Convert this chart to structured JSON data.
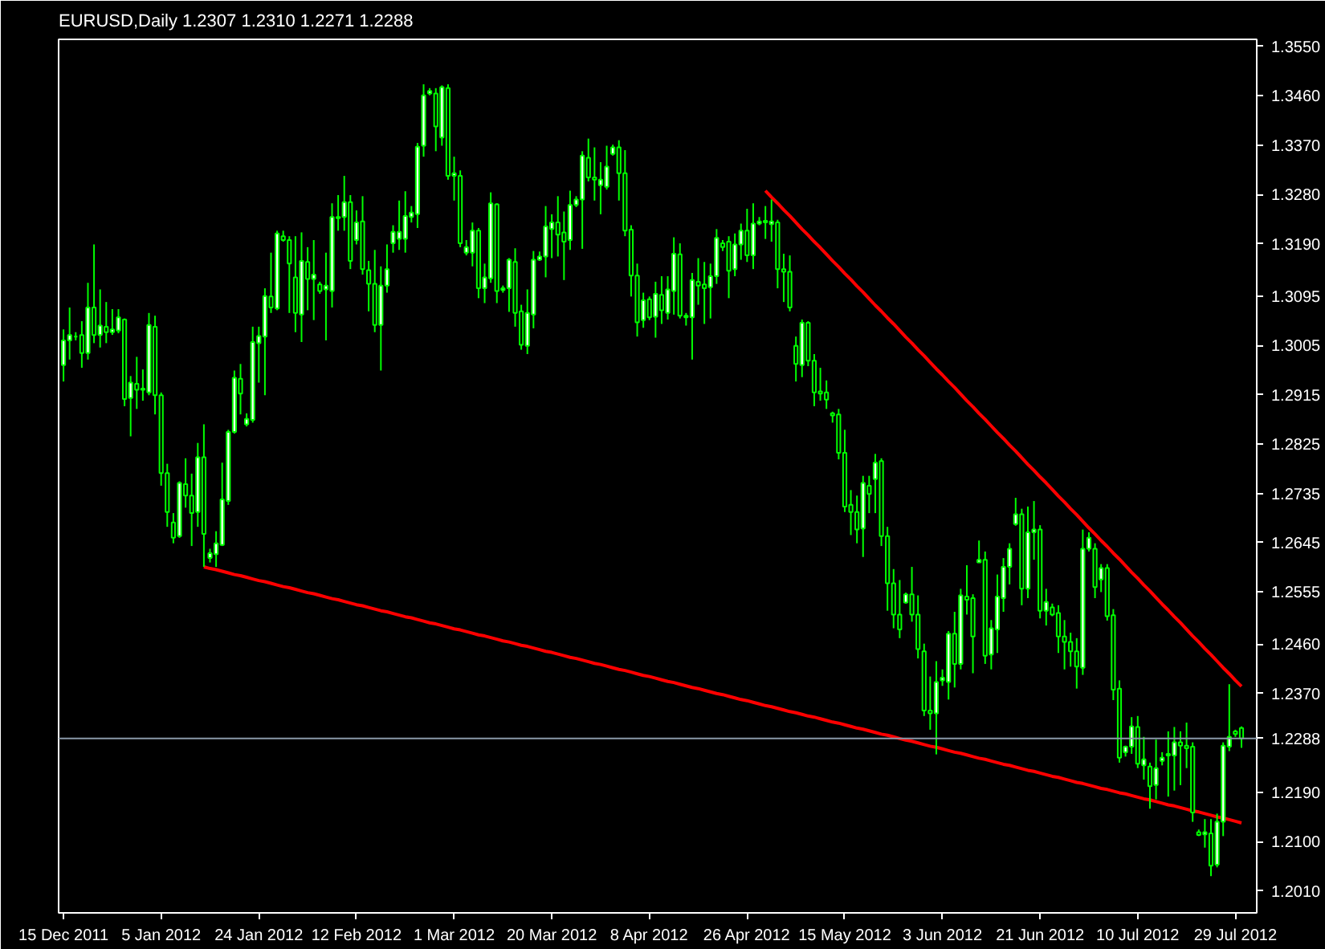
{
  "chart_data": {
    "type": "candlestick",
    "title": "EURUSD,Daily  1.2307 1.2310 1.2271 1.2288",
    "color": "#00ff00",
    "categories": [
      "15 Dec 2011",
      null,
      null,
      null,
      null,
      null,
      null,
      null,
      null,
      null,
      null,
      null,
      null,
      null,
      null,
      null,
      "5 Jan 2012",
      null,
      null,
      null,
      null,
      null,
      null,
      null,
      null,
      null,
      null,
      null,
      null,
      null,
      null,
      null,
      "24 Jan 2012",
      null,
      null,
      null,
      null,
      null,
      null,
      null,
      null,
      null,
      null,
      null,
      null,
      null,
      null,
      null,
      "12 Feb 2012",
      null,
      null,
      null,
      null,
      null,
      null,
      null,
      null,
      null,
      null,
      null,
      null,
      null,
      null,
      null,
      "1 Mar 2012",
      null,
      null,
      null,
      null,
      null,
      null,
      null,
      null,
      null,
      null,
      null,
      null,
      null,
      null,
      null,
      "20 Mar 2012",
      null,
      null,
      null,
      null,
      null,
      null,
      null,
      null,
      null,
      null,
      null,
      null,
      null,
      null,
      null,
      "8 Apr 2012",
      null,
      null,
      null,
      null,
      null,
      null,
      null,
      null,
      null,
      null,
      null,
      null,
      null,
      null,
      null,
      "26 Apr 2012",
      null,
      null,
      null,
      null,
      null,
      null,
      null,
      null,
      null,
      null,
      null,
      null,
      null,
      null,
      null,
      "15 May 2012",
      null,
      null,
      null,
      null,
      null,
      null,
      null,
      null,
      null,
      null,
      null,
      null,
      null,
      null,
      null,
      "3 Jun 2012",
      null,
      null,
      null,
      null,
      null,
      null,
      null,
      null,
      null,
      null,
      null,
      null,
      null,
      null,
      null,
      "21 Jun 2012",
      null,
      null,
      null,
      null,
      null,
      null,
      null,
      null,
      null,
      null,
      null,
      null,
      null,
      null,
      null,
      "10 Jul 2012",
      null,
      null,
      null,
      null,
      null,
      null,
      null,
      null,
      null,
      null,
      null,
      null,
      null,
      null,
      null,
      "29 Jul 2012",
      null
    ],
    "ohlc": [
      [
        1.2969,
        1.3034,
        1.2939,
        1.3014
      ],
      [
        1.3014,
        1.3074,
        1.2979,
        1.3024
      ],
      [
        1.3021,
        1.3029,
        1.3014,
        1.3021
      ],
      [
        1.3024,
        1.3049,
        1.2964,
        1.2991
      ],
      [
        1.2991,
        1.3119,
        1.2979,
        1.3074
      ],
      [
        1.3074,
        1.3189,
        1.3009,
        1.3024
      ],
      [
        1.3024,
        1.3107,
        1.3001,
        1.3041
      ],
      [
        1.3039,
        1.3084,
        1.3009,
        1.3029
      ],
      [
        1.3029,
        1.3071,
        1.3024,
        1.3034
      ],
      [
        1.3032,
        1.3071,
        1.3027,
        1.3056
      ],
      [
        1.3052,
        1.3054,
        1.2894,
        1.2907
      ],
      [
        1.2909,
        1.2949,
        1.2839,
        1.2937
      ],
      [
        1.2935,
        1.2984,
        1.2889,
        1.2924
      ],
      [
        1.2924,
        1.2961,
        1.2904,
        1.2926
      ],
      [
        1.2919,
        1.3064,
        1.2914,
        1.3042
      ],
      [
        1.3039,
        1.3059,
        1.2879,
        1.2914
      ],
      [
        1.2914,
        1.2919,
        1.2749,
        1.2772
      ],
      [
        1.2772,
        1.2789,
        1.2674,
        1.2701
      ],
      [
        1.2682,
        1.2699,
        1.2644,
        1.2654
      ],
      [
        1.2657,
        1.2757,
        1.2654,
        1.2754
      ],
      [
        1.2752,
        1.2799,
        1.2709,
        1.2731
      ],
      [
        1.2731,
        1.2771,
        1.2639,
        1.2699
      ],
      [
        1.2701,
        1.2827,
        1.2674,
        1.2801
      ],
      [
        1.2801,
        1.2861,
        1.2601,
        1.2661
      ],
      [
        1.2617,
        1.2634,
        1.2609,
        1.2626
      ],
      [
        1.2624,
        1.2666,
        1.2601,
        1.2644
      ],
      [
        1.2641,
        1.2791,
        1.2639,
        1.2724
      ],
      [
        1.2721,
        1.2851,
        1.2714,
        1.2847
      ],
      [
        1.2847,
        1.2959,
        1.2844,
        1.2946
      ],
      [
        1.2944,
        1.2971,
        1.2879,
        1.2917
      ],
      [
        1.2861,
        1.2881,
        1.2857,
        1.2871
      ],
      [
        1.2869,
        1.3039,
        1.2864,
        1.3011
      ],
      [
        1.3009,
        1.3039,
        1.2937,
        1.3022
      ],
      [
        1.3021,
        1.3109,
        1.2914,
        1.3095
      ],
      [
        1.3094,
        1.3174,
        1.3064,
        1.3074
      ],
      [
        1.3072,
        1.3214,
        1.3069,
        1.3209
      ],
      [
        1.3204,
        1.3214,
        1.3194,
        1.3197
      ],
      [
        1.3197,
        1.3204,
        1.3064,
        1.3154
      ],
      [
        1.3129,
        1.3204,
        1.3029,
        1.3064
      ],
      [
        1.3061,
        1.3211,
        1.3011,
        1.3159
      ],
      [
        1.3157,
        1.3184,
        1.3069,
        1.3126
      ],
      [
        1.3126,
        1.3197,
        1.3051,
        1.3134
      ],
      [
        1.3116,
        1.3121,
        1.3099,
        1.3104
      ],
      [
        1.3107,
        1.3174,
        1.3014,
        1.3114
      ],
      [
        1.3104,
        1.3264,
        1.3074,
        1.3239
      ],
      [
        1.3239,
        1.3279,
        1.3214,
        1.3237
      ],
      [
        1.3239,
        1.3314,
        1.3214,
        1.3266
      ],
      [
        1.3266,
        1.3279,
        1.3144,
        1.3159
      ],
      [
        1.3197,
        1.3251,
        1.3189,
        1.3229
      ],
      [
        1.3231,
        1.3277,
        1.3134,
        1.3144
      ],
      [
        1.3142,
        1.3159,
        1.3067,
        1.3117
      ],
      [
        1.3117,
        1.3179,
        1.3029,
        1.3042
      ],
      [
        1.3042,
        1.3149,
        1.2959,
        1.3114
      ],
      [
        1.3114,
        1.3189,
        1.3101,
        1.3144
      ],
      [
        1.3191,
        1.3224,
        1.3174,
        1.3212
      ],
      [
        1.3199,
        1.3269,
        1.3179,
        1.3212
      ],
      [
        1.3199,
        1.3286,
        1.3174,
        1.3241
      ],
      [
        1.3239,
        1.3259,
        1.3229,
        1.3247
      ],
      [
        1.3244,
        1.3374,
        1.3219,
        1.3367
      ],
      [
        1.3369,
        1.3481,
        1.3349,
        1.3461
      ],
      [
        1.3464,
        1.3474,
        1.3461,
        1.3469
      ],
      [
        1.3464,
        1.3474,
        1.3359,
        1.3404
      ],
      [
        1.3384,
        1.3479,
        1.3369,
        1.3476
      ],
      [
        1.3474,
        1.3481,
        1.3307,
        1.3314
      ],
      [
        1.3314,
        1.3349,
        1.3269,
        1.3319
      ],
      [
        1.3314,
        1.3324,
        1.3184,
        1.3191
      ],
      [
        1.3174,
        1.3197,
        1.3169,
        1.3184
      ],
      [
        1.3174,
        1.3229,
        1.3149,
        1.3214
      ],
      [
        1.3214,
        1.3219,
        1.3091,
        1.3109
      ],
      [
        1.3109,
        1.3154,
        1.3082,
        1.3129
      ],
      [
        1.3127,
        1.3284,
        1.3119,
        1.3264
      ],
      [
        1.3262,
        1.3264,
        1.3082,
        1.3104
      ],
      [
        1.3106,
        1.3114,
        1.3101,
        1.3109
      ],
      [
        1.3109,
        1.3164,
        1.3066,
        1.3161
      ],
      [
        1.3157,
        1.3182,
        1.3039,
        1.3064
      ],
      [
        1.3067,
        1.3079,
        1.2997,
        1.3006
      ],
      [
        1.3004,
        1.3107,
        1.2989,
        1.3064
      ],
      [
        1.3061,
        1.3177,
        1.3036,
        1.3161
      ],
      [
        1.3161,
        1.3176,
        1.3159,
        1.3167
      ],
      [
        1.3167,
        1.3259,
        1.3129,
        1.3222
      ],
      [
        1.3217,
        1.3244,
        1.3164,
        1.3229
      ],
      [
        1.3229,
        1.3277,
        1.3167,
        1.3207
      ],
      [
        1.3211,
        1.3249,
        1.3124,
        1.3194
      ],
      [
        1.3197,
        1.3287,
        1.3179,
        1.3261
      ],
      [
        1.3261,
        1.3277,
        1.3257,
        1.3271
      ],
      [
        1.3271,
        1.3359,
        1.3181,
        1.3351
      ],
      [
        1.3347,
        1.3382,
        1.3304,
        1.3311
      ],
      [
        1.3311,
        1.3366,
        1.3269,
        1.3307
      ],
      [
        1.3297,
        1.3339,
        1.3244,
        1.3307
      ],
      [
        1.3294,
        1.3369,
        1.3289,
        1.3331
      ],
      [
        1.3354,
        1.3371,
        1.3351,
        1.3366
      ],
      [
        1.3366,
        1.3379,
        1.3269,
        1.3319
      ],
      [
        1.3319,
        1.3361,
        1.3204,
        1.3214
      ],
      [
        1.3216,
        1.3224,
        1.3094,
        1.3132
      ],
      [
        1.3132,
        1.3154,
        1.3021,
        1.3047
      ],
      [
        1.3051,
        1.3101,
        1.3037,
        1.3087
      ],
      [
        1.3089,
        1.3094,
        1.3051,
        1.3056
      ],
      [
        1.3057,
        1.3121,
        1.3019,
        1.3099
      ],
      [
        1.3097,
        1.3131,
        1.3044,
        1.3069
      ],
      [
        1.3064,
        1.3131,
        1.3052,
        1.3107
      ],
      [
        1.3104,
        1.3202,
        1.3061,
        1.3172
      ],
      [
        1.3171,
        1.3191,
        1.3054,
        1.3059
      ],
      [
        1.3059,
        1.3064,
        1.3041,
        1.3056
      ],
      [
        1.3056,
        1.3137,
        1.2979,
        1.3124
      ],
      [
        1.3121,
        1.3164,
        1.3079,
        1.3114
      ],
      [
        1.3116,
        1.3157,
        1.3044,
        1.3109
      ],
      [
        1.3111,
        1.3154,
        1.3054,
        1.3131
      ],
      [
        1.3131,
        1.3217,
        1.3117,
        1.3201
      ],
      [
        1.3191,
        1.3197,
        1.3177,
        1.3184
      ],
      [
        1.3194,
        1.3204,
        1.3091,
        1.3141
      ],
      [
        1.3144,
        1.3209,
        1.3131,
        1.3189
      ],
      [
        1.3189,
        1.3227,
        1.3161,
        1.3214
      ],
      [
        1.3214,
        1.3254,
        1.3157,
        1.3169
      ],
      [
        1.3169,
        1.3264,
        1.3144,
        1.3227
      ],
      [
        1.3227,
        1.3239,
        1.3224,
        1.3231
      ],
      [
        1.3229,
        1.3259,
        1.3199,
        1.3232
      ],
      [
        1.3226,
        1.3271,
        1.3194,
        1.3231
      ],
      [
        1.3229,
        1.3234,
        1.3109,
        1.3144
      ],
      [
        1.3144,
        1.3172,
        1.3084,
        1.3139
      ],
      [
        1.3139,
        1.3169,
        1.3067,
        1.3074
      ],
      [
        1.3004,
        1.3021,
        1.2939,
        1.2971
      ],
      [
        1.2969,
        1.3052,
        1.2947,
        1.3046
      ],
      [
        1.3046,
        1.3049,
        1.2967,
        1.2977
      ],
      [
        1.2977,
        1.2989,
        1.2894,
        1.2919
      ],
      [
        1.2921,
        1.2964,
        1.2904,
        1.2917
      ],
      [
        1.2919,
        1.2941,
        1.2889,
        1.2906
      ],
      [
        1.2881,
        1.2884,
        1.2864,
        1.2877
      ],
      [
        1.2879,
        1.2889,
        1.2797,
        1.2809
      ],
      [
        1.2809,
        1.2851,
        1.2701,
        1.2711
      ],
      [
        1.2714,
        1.2741,
        1.2659,
        1.2701
      ],
      [
        1.2701,
        1.2731,
        1.2644,
        1.2669
      ],
      [
        1.2671,
        1.2767,
        1.2619,
        1.2754
      ],
      [
        1.2749,
        1.2767,
        1.2699,
        1.2734
      ],
      [
        1.2761,
        1.2807,
        1.2699,
        1.2791
      ],
      [
        1.2794,
        1.2799,
        1.2639,
        1.2657
      ],
      [
        1.2657,
        1.2674,
        1.2521,
        1.2571
      ],
      [
        1.2571,
        1.2597,
        1.2489,
        1.2514
      ],
      [
        1.2514,
        1.2577,
        1.2471,
        1.2487
      ],
      [
        1.2536,
        1.2554,
        1.2534,
        1.2551
      ],
      [
        1.2551,
        1.2601,
        1.2501,
        1.2514
      ],
      [
        1.2514,
        1.2549,
        1.2434,
        1.2451
      ],
      [
        1.2447,
        1.2461,
        1.2329,
        1.2339
      ],
      [
        1.2339,
        1.2401,
        1.2304,
        1.2334
      ],
      [
        1.2334,
        1.2429,
        1.2259,
        1.2391
      ],
      [
        1.2394,
        1.2414,
        1.2384,
        1.2399
      ],
      [
        1.2391,
        1.2484,
        1.2359,
        1.2479
      ],
      [
        1.2479,
        1.2519,
        1.2381,
        1.2424
      ],
      [
        1.2424,
        1.2561,
        1.2414,
        1.2549
      ],
      [
        1.2547,
        1.2604,
        1.2514,
        1.2541
      ],
      [
        1.2544,
        1.2551,
        1.2407,
        1.2474
      ],
      [
        1.2609,
        1.2649,
        1.2609,
        1.2614
      ],
      [
        1.2614,
        1.2629,
        1.2424,
        1.2439
      ],
      [
        1.2441,
        1.2504,
        1.2414,
        1.2489
      ],
      [
        1.2487,
        1.2587,
        1.2444,
        1.2547
      ],
      [
        1.2544,
        1.2617,
        1.2519,
        1.2601
      ],
      [
        1.2601,
        1.2644,
        1.2569,
        1.2634
      ],
      [
        1.2679,
        1.2727,
        1.2676,
        1.2697
      ],
      [
        1.2697,
        1.2707,
        1.2531,
        1.2561
      ],
      [
        1.2561,
        1.2711,
        1.2544,
        1.2664
      ],
      [
        1.2664,
        1.2721,
        1.2614,
        1.2669
      ],
      [
        1.2669,
        1.2677,
        1.2507,
        1.2521
      ],
      [
        1.2521,
        1.2561,
        1.2494,
        1.2537
      ],
      [
        1.2527,
        1.2534,
        1.2511,
        1.2514
      ],
      [
        1.2517,
        1.2531,
        1.2444,
        1.2474
      ],
      [
        1.2474,
        1.2504,
        1.2414,
        1.2464
      ],
      [
        1.2464,
        1.2481,
        1.2419,
        1.2447
      ],
      [
        1.2447,
        1.2471,
        1.2379,
        1.2419
      ],
      [
        1.2417,
        1.2669,
        1.2404,
        1.2634
      ],
      [
        1.2634,
        1.2664,
        1.2629,
        1.2654
      ],
      [
        1.2634,
        1.2644,
        1.2544,
        1.2564
      ],
      [
        1.2578,
        1.2606,
        1.2555,
        1.2599
      ],
      [
        1.2599,
        1.2606,
        1.2503,
        1.2511
      ],
      [
        1.2513,
        1.2524,
        1.2358,
        1.2377
      ],
      [
        1.2379,
        1.2394,
        1.2244,
        1.2253
      ],
      [
        1.2263,
        1.2275,
        1.2255,
        1.2273
      ],
      [
        1.2273,
        1.2327,
        1.226,
        1.231
      ],
      [
        1.2309,
        1.2329,
        1.2234,
        1.2242
      ],
      [
        1.2239,
        1.2291,
        1.2213,
        1.225
      ],
      [
        1.2237,
        1.2244,
        1.216,
        1.2201
      ],
      [
        1.2203,
        1.2286,
        1.2177,
        1.2234
      ],
      [
        1.2247,
        1.2263,
        1.2239,
        1.2253
      ],
      [
        1.2257,
        1.2301,
        1.2182,
        1.226
      ],
      [
        1.2257,
        1.2309,
        1.2193,
        1.2281
      ],
      [
        1.2281,
        1.2301,
        1.2203,
        1.2275
      ],
      [
        1.2275,
        1.2317,
        1.2234,
        1.227
      ],
      [
        1.2273,
        1.2281,
        1.2136,
        1.2153
      ],
      [
        1.2117,
        1.2122,
        1.211,
        1.2112
      ],
      [
        1.2113,
        1.2141,
        1.2089,
        1.2117
      ],
      [
        1.2115,
        1.2141,
        1.2037,
        1.2056
      ],
      [
        1.2058,
        1.2151,
        1.2053,
        1.2136
      ],
      [
        1.2136,
        1.2281,
        1.211,
        1.2275
      ],
      [
        1.2273,
        1.2387,
        1.2265,
        1.2291
      ],
      [
        1.2301,
        1.2304,
        1.2291,
        1.2296
      ],
      [
        1.2307,
        1.231,
        1.2271,
        1.2288
      ]
    ],
    "series": [
      {
        "type": "line",
        "color": "#ff0000",
        "values": [
          null,
          null,
          null,
          null,
          null,
          null,
          null,
          null,
          null,
          null,
          null,
          null,
          null,
          null,
          null,
          null,
          null,
          null,
          null,
          null,
          null,
          null,
          null,
          null,
          null,
          null,
          null,
          null,
          null,
          null,
          null,
          null,
          null,
          null,
          null,
          null,
          null,
          null,
          null,
          null,
          null,
          null,
          null,
          null,
          null,
          null,
          null,
          null,
          null,
          null,
          null,
          null,
          null,
          null,
          null,
          null,
          null,
          null,
          null,
          null,
          null,
          null,
          null,
          null,
          null,
          null,
          null,
          null,
          null,
          null,
          null,
          null,
          null,
          null,
          null,
          null,
          null,
          null,
          null,
          null,
          null,
          null,
          null,
          null,
          null,
          null,
          null,
          null,
          null,
          null,
          null,
          null,
          null,
          null,
          null,
          null,
          null,
          null,
          null,
          null,
          null,
          null,
          null,
          null,
          null,
          null,
          null,
          null,
          null,
          null,
          null,
          null,
          null,
          null,
          null,
          1.3287,
          1.3275,
          1.3264,
          1.3252,
          1.3241,
          1.3229,
          1.3217,
          1.3206,
          1.3194,
          1.3183,
          1.3171,
          1.3159,
          1.3148,
          1.3136,
          1.3125,
          1.3113,
          1.3102,
          1.309,
          1.3078,
          1.3067,
          1.3055,
          1.3044,
          1.3032,
          1.302,
          1.3009,
          1.2997,
          1.2986,
          1.2974,
          1.2962,
          1.2951,
          1.2939,
          1.2928,
          1.2916,
          1.2904,
          1.2893,
          1.2881,
          1.287,
          1.2858,
          1.2846,
          1.2835,
          1.2823,
          1.2812,
          1.28,
          1.2788,
          1.2777,
          1.2765,
          1.2754,
          1.2742,
          1.273,
          1.2719,
          1.2707,
          1.2696,
          1.2684,
          1.2672,
          1.2661,
          1.2649,
          1.2638,
          1.2626,
          1.2615,
          1.2603,
          1.2591,
          1.258,
          1.2568,
          1.2557,
          1.2545,
          1.2533,
          1.2522,
          1.251,
          1.2499,
          1.2487,
          1.2475,
          1.2464,
          1.2452,
          1.2441,
          1.2429,
          1.2417,
          1.2406,
          1.2394,
          1.2383
        ]
      },
      {
        "type": "line",
        "color": "#ff0000",
        "values": [
          null,
          null,
          null,
          null,
          null,
          null,
          null,
          null,
          null,
          null,
          null,
          null,
          null,
          null,
          null,
          null,
          null,
          null,
          null,
          null,
          null,
          null,
          null,
          1.2601,
          1.2598,
          1.2596,
          1.2593,
          1.259,
          1.2587,
          1.2585,
          1.2582,
          1.2579,
          1.2576,
          1.2574,
          1.2571,
          1.2568,
          1.2565,
          1.2563,
          1.256,
          1.2557,
          1.2554,
          1.2552,
          1.2549,
          1.2546,
          1.2543,
          1.2541,
          1.2538,
          1.2535,
          1.2532,
          1.253,
          1.2527,
          1.2524,
          1.2521,
          1.2519,
          1.2516,
          1.2513,
          1.251,
          1.2508,
          1.2505,
          1.2502,
          1.2499,
          1.2497,
          1.2494,
          1.2491,
          1.2488,
          1.2486,
          1.2483,
          1.248,
          1.2477,
          1.2475,
          1.2472,
          1.2469,
          1.2466,
          1.2464,
          1.2461,
          1.2458,
          1.2456,
          1.2453,
          1.245,
          1.2447,
          1.2445,
          1.2442,
          1.2439,
          1.2436,
          1.2434,
          1.2431,
          1.2428,
          1.2425,
          1.2423,
          1.242,
          1.2417,
          1.2414,
          1.2412,
          1.2409,
          1.2406,
          1.2403,
          1.2401,
          1.2398,
          1.2395,
          1.2392,
          1.239,
          1.2387,
          1.2384,
          1.2381,
          1.2379,
          1.2376,
          1.2373,
          1.237,
          1.2368,
          1.2365,
          1.2362,
          1.2359,
          1.2357,
          1.2354,
          1.2351,
          1.2348,
          1.2346,
          1.2343,
          1.234,
          1.2337,
          1.2335,
          1.2332,
          1.2329,
          1.2327,
          1.2324,
          1.2321,
          1.2318,
          1.2316,
          1.2313,
          1.231,
          1.2307,
          1.2305,
          1.2302,
          1.2299,
          1.2296,
          1.2294,
          1.2291,
          1.2288,
          1.2285,
          1.2283,
          1.228,
          1.2277,
          1.2274,
          1.2272,
          1.2269,
          1.2266,
          1.2263,
          1.2261,
          1.2258,
          1.2255,
          1.2252,
          1.225,
          1.2247,
          1.2244,
          1.2241,
          1.2239,
          1.2236,
          1.2233,
          1.223,
          1.2228,
          1.2225,
          1.2222,
          1.2219,
          1.2217,
          1.2214,
          1.2211,
          1.2208,
          1.2206,
          1.2203,
          1.22,
          1.2197,
          1.2195,
          1.2192,
          1.2189,
          1.2187,
          1.2184,
          1.2181,
          1.2178,
          1.2176,
          1.2173,
          1.217,
          1.2167,
          1.2165,
          1.2162,
          1.2159,
          1.2156,
          1.2154,
          1.2151,
          1.2148,
          1.2145,
          1.2143,
          1.214,
          1.2137,
          1.2134
        ]
      }
    ],
    "ref_lines": [
      {
        "axis": "y",
        "value": 1.2288,
        "label": "1.2288",
        "color": "#8a99a8"
      }
    ],
    "ylim": [
      1.197,
      1.3563
    ],
    "yticks": [
      {
        "value": 1.355,
        "label": "1.3550"
      },
      {
        "value": 1.346,
        "label": "1.3460"
      },
      {
        "value": 1.337,
        "label": "1.3370"
      },
      {
        "value": 1.328,
        "label": "1.3280"
      },
      {
        "value": 1.319,
        "label": "1.3190"
      },
      1.3095,
      1.3005,
      1.2915,
      1.2825,
      1.2735,
      1.2645,
      1.2555,
      {
        "value": 1.246,
        "label": "1.2460"
      },
      {
        "value": 1.237,
        "label": "1.2370"
      },
      {
        "value": 1.219,
        "label": "1.2190"
      },
      {
        "value": 1.21,
        "label": "1.2100"
      },
      {
        "value": 1.201,
        "label": "1.2010"
      }
    ],
    "grid": false
  }
}
